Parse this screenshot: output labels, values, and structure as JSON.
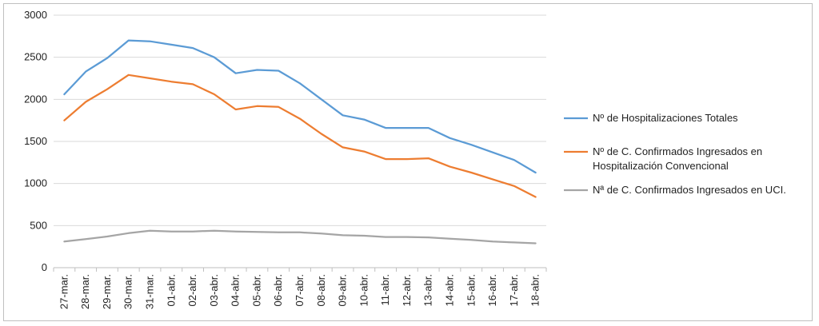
{
  "chart_data": {
    "type": "line",
    "title": "",
    "xlabel": "",
    "ylabel": "",
    "ylim": [
      0,
      3000
    ],
    "yticks": [
      0,
      500,
      1000,
      1500,
      2000,
      2500,
      3000
    ],
    "grid": true,
    "legend_position": "right",
    "categories": [
      "27-mar.",
      "28-mar.",
      "29-mar.",
      "30-mar.",
      "31-mar.",
      "01-abr.",
      "02-abr.",
      "03-abr.",
      "04-abr.",
      "05-abr.",
      "06-abr.",
      "07-abr.",
      "08-abr.",
      "09-abr.",
      "10-abr.",
      "11-abr.",
      "12-abr.",
      "13-abr.",
      "14-abr.",
      "15-abr.",
      "16-abr.",
      "17-abr.",
      "18-abr."
    ],
    "series": [
      {
        "name": "Nº de Hospitalizaciones Totales",
        "color": "#5b9bd5",
        "values": [
          2060,
          2330,
          2490,
          2700,
          2690,
          2650,
          2610,
          2500,
          2310,
          2350,
          2340,
          2190,
          2000,
          1810,
          1760,
          1660,
          1660,
          1660,
          1540,
          1460,
          1370,
          1280,
          1130
        ]
      },
      {
        "name_lines": [
          "Nº de C. Confirmados Ingresados en",
          "Hospitalización Convencional"
        ],
        "color": "#ed7d31",
        "values": [
          1750,
          1970,
          2120,
          2290,
          2250,
          2210,
          2180,
          2060,
          1880,
          1920,
          1910,
          1770,
          1590,
          1430,
          1380,
          1290,
          1290,
          1300,
          1200,
          1130,
          1050,
          970,
          840
        ]
      },
      {
        "name": "Nª de C. Confirmados Ingresados en UCI.",
        "color": "#a5a5a5",
        "values": [
          310,
          340,
          370,
          410,
          440,
          430,
          430,
          440,
          430,
          425,
          420,
          420,
          405,
          385,
          380,
          365,
          365,
          360,
          345,
          330,
          310,
          300,
          290
        ]
      }
    ]
  },
  "colors": {
    "grid": "#d9d9d9",
    "axis": "#bfbfbf"
  }
}
